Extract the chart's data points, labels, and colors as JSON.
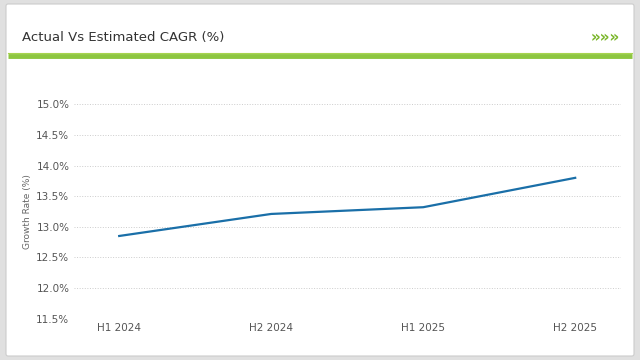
{
  "title": "Actual Vs Estimated CAGR (%)",
  "ylabel": "Growth Rate (%)",
  "x_labels": [
    "H1 2024",
    "H2 2024",
    "H1 2025",
    "H2 2025"
  ],
  "x_values": [
    0,
    1,
    2,
    3
  ],
  "y_values": [
    12.85,
    13.21,
    13.32,
    13.8
  ],
  "line_color": "#1a6fa8",
  "ylim": [
    11.5,
    15.0
  ],
  "yticks": [
    11.5,
    12.0,
    12.5,
    13.0,
    13.5,
    14.0,
    14.5,
    15.0
  ],
  "background_outer": "#e0e0e0",
  "background_inner": "#ffffff",
  "title_fontsize": 9.5,
  "axis_fontsize": 7.5,
  "ylabel_fontsize": 6.5,
  "green_bar_color": "#8dc63f",
  "title_color": "#333333",
  "grid_color": "#cccccc",
  "line_width": 1.6,
  "chevron_color": "#7ab62a",
  "card_edge_color": "#cccccc"
}
